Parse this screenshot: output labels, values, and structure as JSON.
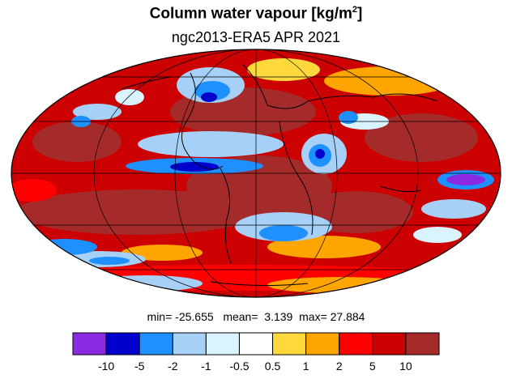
{
  "title_main": "Column water vapour [kg/m",
  "title_sup": "2",
  "title_end": "]",
  "subtitle": "ngc2013-ERA5  APR 2021",
  "stats": {
    "min_label": "min=",
    "min": "-25.655",
    "mean_label": "mean=",
    "mean": "3.139",
    "max_label": "max=",
    "max": "27.884"
  },
  "colorbar": {
    "colors": [
      "#8a2be2",
      "#0000cd",
      "#1e90ff",
      "#a6d0f6",
      "#d9f3ff",
      "#ffffff",
      "#ffd93b",
      "#ffa500",
      "#ff0000",
      "#cc0000",
      "#a52a2a"
    ],
    "ticks": [
      "-10",
      "-5",
      "-2",
      "-1",
      "-0.5",
      "0.5",
      "1",
      "2",
      "5",
      "10"
    ]
  },
  "map": {
    "projection": "Mollweide",
    "colors": {
      "dark_red": "#a52a2a",
      "red": "#cc0000",
      "bright_red": "#ff0000",
      "orange": "#ffa500",
      "yellow": "#ffd93b",
      "pale_blue": "#d9f3ff",
      "light_blue": "#a6d0f6",
      "blue": "#1e90ff",
      "navy": "#0000cd",
      "purple": "#8a2be2"
    }
  }
}
